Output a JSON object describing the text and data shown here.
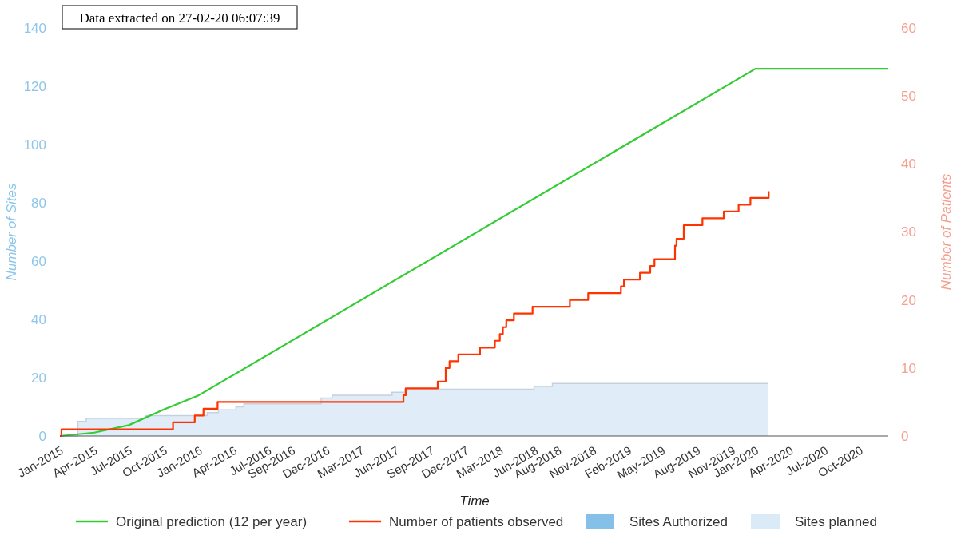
{
  "chart_data": {
    "type": "line",
    "xlabel": "Time",
    "ylabel": "Number of Sites",
    "y2label": "Number of Patients",
    "annotations": [
      "Data extracted on 27-02-20 06:07:39"
    ],
    "xlim": [
      "2015-01-01",
      "2020-12-15"
    ],
    "xticks": [
      {
        "value": "2015-01-01",
        "label": "Jan-2015"
      },
      {
        "value": "2015-04-01",
        "label": "Apr-2015"
      },
      {
        "value": "2015-07-01",
        "label": "Jul-2015"
      },
      {
        "value": "2015-10-01",
        "label": "Oct-2015"
      },
      {
        "value": "2016-01-01",
        "label": "Jan-2016"
      },
      {
        "value": "2016-04-01",
        "label": "Apr-2016"
      },
      {
        "value": "2016-07-01",
        "label": "Jul-2016"
      },
      {
        "value": "2016-09-01",
        "label": "Sep-2016"
      },
      {
        "value": "2016-12-01",
        "label": "Dec-2016"
      },
      {
        "value": "2017-03-01",
        "label": "Mar-2017"
      },
      {
        "value": "2017-06-01",
        "label": "Jun-2017"
      },
      {
        "value": "2017-09-01",
        "label": "Sep-2017"
      },
      {
        "value": "2017-12-01",
        "label": "Dec-2017"
      },
      {
        "value": "2018-03-01",
        "label": "Mar-2018"
      },
      {
        "value": "2018-06-01",
        "label": "Jun-2018"
      },
      {
        "value": "2018-08-01",
        "label": "Aug-2018"
      },
      {
        "value": "2018-11-01",
        "label": "Nov-2018"
      },
      {
        "value": "2019-02-01",
        "label": "Feb-2019"
      },
      {
        "value": "2019-05-01",
        "label": "May-2019"
      },
      {
        "value": "2019-08-01",
        "label": "Aug-2019"
      },
      {
        "value": "2019-11-01",
        "label": "Nov-2019"
      },
      {
        "value": "2020-01-01",
        "label": "Jan-2020"
      },
      {
        "value": "2020-04-01",
        "label": "Apr-2020"
      },
      {
        "value": "2020-07-01",
        "label": "Jul-2020"
      },
      {
        "value": "2020-10-01",
        "label": "Oct-2020"
      }
    ],
    "ylim": [
      0,
      140
    ],
    "yticks": [
      0,
      20,
      40,
      60,
      80,
      100,
      120,
      140
    ],
    "y2lim": [
      0,
      60
    ],
    "y2ticks": [
      0,
      10,
      20,
      30,
      40,
      50,
      60
    ],
    "grid": false,
    "legend": "bottom",
    "series": [
      {
        "name": "Sites planned",
        "type": "area",
        "color": "#dbeaf7",
        "x": [
          "2015-01-01",
          "2015-02-17",
          "2015-03-11",
          "2015-08-15",
          "2016-01-23",
          "2016-02-21",
          "2016-04-07",
          "2016-04-28",
          "2016-11-17",
          "2016-12-16",
          "2017-05-22",
          "2017-06-25",
          "2018-05-30",
          "2018-07-17",
          "2020-02-04"
        ],
        "values": [
          0,
          5,
          6,
          7,
          8,
          9,
          10,
          11,
          13,
          14,
          15,
          16,
          17,
          18,
          18
        ]
      },
      {
        "name": "Sites Authorized",
        "type": "area",
        "color": "#85c0e8"
      },
      {
        "name": "Original prediction (12 per year)",
        "axis": "y2",
        "color": "#33cc33",
        "x": [
          "2015-01-01",
          "2015-04-01",
          "2015-07-01",
          "2015-10-01",
          "2016-01-01",
          "2020-01-01",
          "2020-12-15"
        ],
        "values": [
          0,
          0.5,
          1.6,
          3.9,
          6,
          54,
          54
        ]
      },
      {
        "name": "Number of patients observed",
        "type": "step",
        "axis": "y2",
        "color": "#ff3300",
        "x": [
          "2015-01-01",
          "2015-01-05",
          "2015-10-25",
          "2015-12-21",
          "2016-01-13",
          "2016-02-19",
          "2017-06-21",
          "2017-06-27",
          "2017-09-19",
          "2017-10-10",
          "2017-10-20",
          "2017-11-12",
          "2018-01-08",
          "2018-02-16",
          "2018-03-01",
          "2018-03-09",
          "2018-03-18",
          "2018-04-07",
          "2018-05-26",
          "2018-09-01",
          "2018-10-19",
          "2019-01-13",
          "2019-01-21",
          "2019-03-04",
          "2019-03-31",
          "2019-04-11",
          "2019-06-04",
          "2019-06-08",
          "2019-06-27",
          "2019-08-15",
          "2019-10-10",
          "2019-11-18",
          "2019-12-19",
          "2020-02-05"
        ],
        "values": [
          0,
          1,
          2,
          3,
          4,
          5,
          6,
          7,
          8,
          10,
          11,
          12,
          13,
          14,
          15,
          16,
          17,
          18,
          19,
          20,
          21,
          22,
          23,
          24,
          25,
          26,
          28,
          29,
          31,
          32,
          33,
          34,
          35,
          36
        ]
      }
    ]
  }
}
